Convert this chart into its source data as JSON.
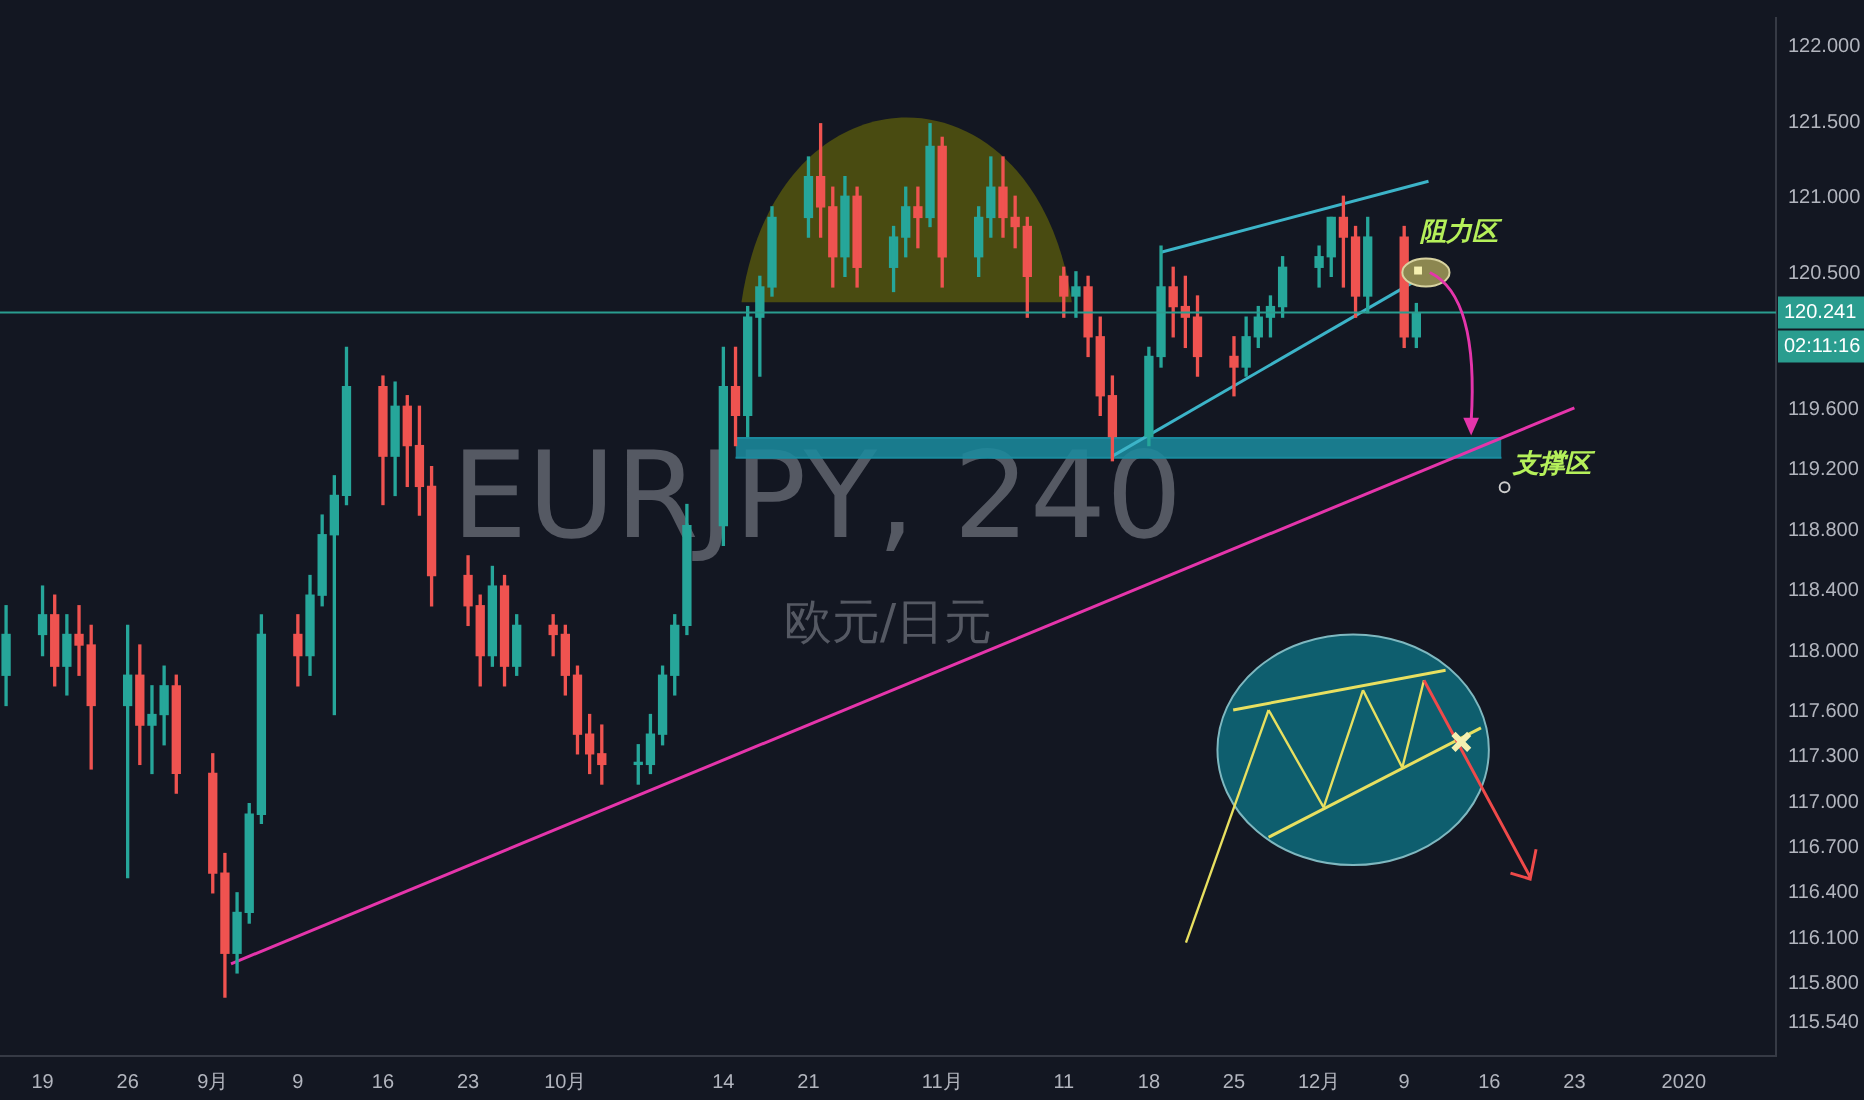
{
  "chart_data": {
    "type": "candlestick",
    "title": "EURJPY, 240",
    "subtitle": "欧元/日元",
    "x": [
      "2019-08-16",
      "2019-08-19",
      "2019-08-20",
      "2019-08-21",
      "2019-08-22",
      "2019-08-23",
      "2019-08-26",
      "2019-08-27",
      "2019-08-28",
      "2019-08-29",
      "2019-08-30",
      "2019-09-02",
      "2019-09-03",
      "2019-09-04",
      "2019-09-05",
      "2019-09-06",
      "2019-09-09",
      "2019-09-10",
      "2019-09-11",
      "2019-09-12",
      "2019-09-13",
      "2019-09-16",
      "2019-09-17",
      "2019-09-18",
      "2019-09-19",
      "2019-09-20",
      "2019-09-23",
      "2019-09-24",
      "2019-09-25",
      "2019-09-26",
      "2019-09-27",
      "2019-09-30",
      "2019-10-01",
      "2019-10-02",
      "2019-10-03",
      "2019-10-04",
      "2019-10-07",
      "2019-10-08",
      "2019-10-09",
      "2019-10-10",
      "2019-10-11",
      "2019-10-14",
      "2019-10-15",
      "2019-10-16",
      "2019-10-17",
      "2019-10-18",
      "2019-10-21",
      "2019-10-22",
      "2019-10-23",
      "2019-10-24",
      "2019-10-25",
      "2019-10-28",
      "2019-10-29",
      "2019-10-30",
      "2019-10-31",
      "2019-11-01",
      "2019-11-04",
      "2019-11-05",
      "2019-11-06",
      "2019-11-07",
      "2019-11-08",
      "2019-11-11",
      "2019-11-12",
      "2019-11-13",
      "2019-11-14",
      "2019-11-15",
      "2019-11-18",
      "2019-11-19",
      "2019-11-20",
      "2019-11-21",
      "2019-11-22",
      "2019-11-25",
      "2019-11-26",
      "2019-11-27",
      "2019-11-28",
      "2019-11-29",
      "2019-12-02",
      "2019-12-03",
      "2019-12-04",
      "2019-12-05",
      "2019-12-06",
      "2019-12-09",
      "2019-12-10"
    ],
    "ohlc": [
      [
        117.84,
        118.3,
        117.64,
        118.11
      ],
      [
        118.11,
        118.43,
        117.97,
        118.24
      ],
      [
        118.24,
        118.37,
        117.77,
        117.9
      ],
      [
        117.9,
        118.24,
        117.71,
        118.11
      ],
      [
        118.11,
        118.3,
        117.84,
        118.04
      ],
      [
        118.04,
        118.17,
        117.22,
        117.64
      ],
      [
        117.64,
        118.17,
        116.5,
        117.84
      ],
      [
        117.84,
        118.04,
        117.25,
        117.51
      ],
      [
        117.51,
        117.77,
        117.19,
        117.58
      ],
      [
        117.58,
        117.9,
        117.38,
        117.77
      ],
      [
        117.77,
        117.84,
        117.06,
        117.19
      ],
      [
        117.19,
        117.32,
        116.4,
        116.53
      ],
      [
        116.53,
        116.66,
        115.71,
        116.0
      ],
      [
        116.0,
        116.4,
        115.87,
        116.27
      ],
      [
        116.27,
        116.99,
        116.2,
        116.92
      ],
      [
        116.92,
        118.24,
        116.86,
        118.11
      ],
      [
        118.11,
        118.24,
        117.77,
        117.97
      ],
      [
        117.97,
        118.5,
        117.84,
        118.37
      ],
      [
        118.37,
        118.9,
        118.3,
        118.77
      ],
      [
        118.77,
        119.16,
        117.58,
        119.03
      ],
      [
        119.03,
        120.01,
        118.97,
        119.75
      ],
      [
        119.75,
        119.82,
        118.97,
        119.29
      ],
      [
        119.29,
        119.78,
        119.03,
        119.62
      ],
      [
        119.62,
        119.69,
        119.09,
        119.36
      ],
      [
        119.36,
        119.62,
        118.9,
        119.09
      ],
      [
        119.09,
        119.22,
        118.3,
        118.5
      ],
      [
        118.5,
        118.63,
        118.17,
        118.3
      ],
      [
        118.3,
        118.37,
        117.77,
        117.97
      ],
      [
        117.97,
        118.56,
        117.9,
        118.43
      ],
      [
        118.43,
        118.5,
        117.77,
        117.9
      ],
      [
        117.9,
        118.24,
        117.84,
        118.17
      ],
      [
        118.17,
        118.24,
        117.97,
        118.11
      ],
      [
        118.11,
        118.17,
        117.71,
        117.84
      ],
      [
        117.84,
        117.9,
        117.32,
        117.45
      ],
      [
        117.45,
        117.58,
        117.19,
        117.32
      ],
      [
        117.32,
        117.51,
        117.12,
        117.25
      ],
      [
        117.25,
        117.38,
        117.12,
        117.25
      ],
      [
        117.25,
        117.58,
        117.19,
        117.45
      ],
      [
        117.45,
        117.9,
        117.38,
        117.84
      ],
      [
        117.84,
        118.24,
        117.71,
        118.17
      ],
      [
        118.17,
        118.97,
        118.11,
        118.83
      ],
      [
        118.83,
        120.01,
        118.7,
        119.75
      ],
      [
        119.75,
        120.01,
        119.36,
        119.56
      ],
      [
        119.56,
        120.28,
        119.42,
        120.21
      ],
      [
        120.21,
        120.48,
        119.82,
        120.41
      ],
      [
        120.41,
        120.94,
        120.35,
        120.87
      ],
      [
        120.87,
        121.27,
        120.74,
        121.14
      ],
      [
        121.14,
        121.49,
        120.74,
        120.94
      ],
      [
        120.94,
        121.07,
        120.41,
        120.61
      ],
      [
        120.61,
        121.14,
        120.48,
        121.01
      ],
      [
        121.01,
        121.07,
        120.41,
        120.54
      ],
      [
        120.54,
        120.81,
        120.38,
        120.74
      ],
      [
        120.74,
        121.07,
        120.61,
        120.94
      ],
      [
        120.94,
        121.07,
        120.67,
        120.87
      ],
      [
        120.87,
        121.49,
        120.81,
        121.34
      ],
      [
        121.34,
        121.4,
        120.41,
        120.61
      ],
      [
        120.61,
        120.94,
        120.48,
        120.87
      ],
      [
        120.87,
        121.27,
        120.74,
        121.07
      ],
      [
        121.07,
        121.27,
        120.74,
        120.87
      ],
      [
        120.87,
        121.01,
        120.67,
        120.81
      ],
      [
        120.81,
        120.87,
        120.21,
        120.48
      ],
      [
        120.48,
        120.54,
        120.21,
        120.35
      ],
      [
        120.35,
        120.51,
        120.21,
        120.41
      ],
      [
        120.41,
        120.48,
        119.95,
        120.08
      ],
      [
        120.08,
        120.21,
        119.56,
        119.69
      ],
      [
        119.69,
        119.82,
        119.26,
        119.42
      ],
      [
        119.42,
        120.01,
        119.36,
        119.95
      ],
      [
        119.95,
        120.68,
        119.88,
        120.41
      ],
      [
        120.41,
        120.54,
        120.08,
        120.28
      ],
      [
        120.28,
        120.48,
        120.01,
        120.21
      ],
      [
        120.21,
        120.35,
        119.82,
        119.95
      ],
      [
        119.95,
        120.08,
        119.69,
        119.88
      ],
      [
        119.88,
        120.21,
        119.82,
        120.08
      ],
      [
        120.08,
        120.28,
        120.01,
        120.21
      ],
      [
        120.21,
        120.35,
        120.08,
        120.28
      ],
      [
        120.28,
        120.61,
        120.21,
        120.54
      ],
      [
        120.54,
        120.68,
        120.41,
        120.61
      ],
      [
        120.61,
        120.87,
        120.48,
        120.87
      ],
      [
        120.87,
        121.01,
        120.41,
        120.74
      ],
      [
        120.74,
        120.81,
        120.21,
        120.35
      ],
      [
        120.35,
        120.87,
        120.24,
        120.74
      ],
      [
        120.74,
        120.81,
        120.01,
        120.08
      ],
      [
        120.08,
        120.3,
        120.01,
        120.24
      ]
    ],
    "series": [
      {
        "type": "line",
        "color": "#e535ab",
        "x": [
          "2019-09-03T12:00",
          "2019-12-23"
        ],
        "values": [
          115.93,
          119.61
        ]
      },
      {
        "type": "line",
        "color": "#3cb4c8",
        "x": [
          "2019-11-19",
          "2019-12-11"
        ],
        "values": [
          120.64,
          121.11
        ]
      },
      {
        "type": "line",
        "color": "#3cb4c8",
        "x": [
          "2019-11-15",
          "2019-12-11"
        ],
        "values": [
          119.29,
          120.5
        ]
      },
      {
        "type": "line",
        "color": "#1a8a9e",
        "x": [
          "2019-10-15",
          "2019-12-17"
        ],
        "values": [
          119.41,
          119.41
        ],
        "lower": [
          119.28,
          119.28
        ],
        "upper": [
          119.41,
          119.41
        ]
      }
    ],
    "ref_lines": [
      {
        "axis": "y",
        "value": 120.241,
        "label": "120.241",
        "color": "#2a9d8f"
      }
    ],
    "annotations": [
      "02:11:16",
      "阻力区",
      {
        "text": "支撑区",
        "x": "2019-12-17",
        "y": 119.35
      }
    ],
    "xlim": [
      "2019-08-15T12:00",
      "2020-01-08T14:00"
    ],
    "xticks": [
      {
        "value": "2019-08-19",
        "label": "19"
      },
      {
        "value": "2019-08-26",
        "label": "26"
      },
      {
        "value": "2019-09-02",
        "label": "9月"
      },
      {
        "value": "2019-09-09",
        "label": "9"
      },
      {
        "value": "2019-09-16",
        "label": "16"
      },
      {
        "value": "2019-09-23",
        "label": "23"
      },
      {
        "value": "2019-10-01",
        "label": "10月"
      },
      {
        "value": "2019-10-14",
        "label": "14"
      },
      {
        "value": "2019-10-21",
        "label": "21"
      },
      {
        "value": "2019-11-01",
        "label": "11月"
      },
      {
        "value": "2019-11-11",
        "label": "11"
      },
      {
        "value": "2019-11-18",
        "label": "18"
      },
      {
        "value": "2019-11-25",
        "label": "25"
      },
      {
        "value": "2019-12-02",
        "label": "12月"
      },
      {
        "value": "2019-12-09",
        "label": "9"
      },
      {
        "value": "2019-12-16",
        "label": "16"
      },
      {
        "value": "2019-12-23",
        "label": "23"
      },
      {
        "value": "2020-01-01",
        "label": "2020"
      }
    ],
    "ylim": [
      115.32,
      122.19
    ],
    "yticks": [
      {
        "value": 115.54,
        "label": "115.540"
      },
      {
        "value": 115.8,
        "label": "115.800"
      },
      {
        "value": 116.1,
        "label": "116.100"
      },
      {
        "value": 116.4,
        "label": "116.400"
      },
      {
        "value": 116.7,
        "label": "116.700"
      },
      {
        "value": 117,
        "label": "117.000"
      },
      {
        "value": 117.3,
        "label": "117.300"
      },
      {
        "value": 117.6,
        "label": "117.600"
      },
      {
        "value": 118,
        "label": "118.000"
      },
      {
        "value": 118.4,
        "label": "118.400"
      },
      {
        "value": 118.8,
        "label": "118.800"
      },
      {
        "value": 119.2,
        "label": "119.200"
      },
      {
        "value": 119.6,
        "label": "119.600"
      },
      {
        "value": 120.5,
        "label": "120.500"
      },
      {
        "value": 121,
        "label": "121.000"
      },
      {
        "value": 121.5,
        "label": "121.500"
      },
      {
        "value": 122,
        "label": "122.000"
      }
    ],
    "grid": false,
    "legend": false
  }
}
